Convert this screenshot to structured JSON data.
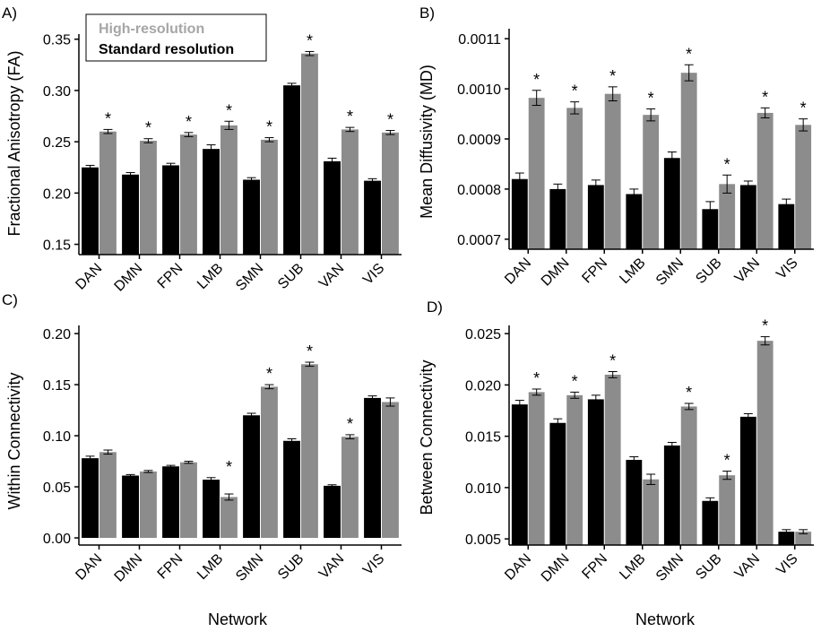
{
  "legend": {
    "high_label": "High-resolution",
    "standard_label": "Standard resolution"
  },
  "colors": {
    "standard": "#000000",
    "high": "#8c8c8c",
    "legend_high_text": "#a6a6a6"
  },
  "chart_data": [
    {
      "panel_label": "A)",
      "type": "bar",
      "ylabel": "Fractional Anisotropy (FA)",
      "xlabel": "",
      "categories": [
        "DAN",
        "DMN",
        "FPN",
        "LMB",
        "SMN",
        "SUB",
        "VAN",
        "VIS"
      ],
      "ylim": [
        0.14,
        0.355
      ],
      "yticks": [
        0.15,
        0.2,
        0.25,
        0.3,
        0.35
      ],
      "ytick_labels": [
        "0.15",
        "0.20",
        "0.25",
        "0.30",
        "0.35"
      ],
      "series": [
        {
          "name": "Standard resolution",
          "values": [
            0.225,
            0.218,
            0.227,
            0.243,
            0.213,
            0.305,
            0.231,
            0.212
          ],
          "errors": [
            0.002,
            0.002,
            0.002,
            0.004,
            0.002,
            0.002,
            0.003,
            0.002
          ]
        },
        {
          "name": "High-resolution",
          "values": [
            0.26,
            0.251,
            0.257,
            0.266,
            0.252,
            0.336,
            0.262,
            0.259
          ],
          "errors": [
            0.002,
            0.002,
            0.002,
            0.004,
            0.002,
            0.002,
            0.002,
            0.002
          ]
        }
      ],
      "significant": [
        true,
        true,
        true,
        true,
        true,
        true,
        true,
        true
      ],
      "significance_marker": "*",
      "legend_position": "top-left"
    },
    {
      "panel_label": "B)",
      "type": "bar",
      "ylabel": "Mean Diffusivity (MD)",
      "xlabel": "",
      "categories": [
        "DAN",
        "DMN",
        "FPN",
        "LMB",
        "SMN",
        "SUB",
        "VAN",
        "VIS"
      ],
      "ylim": [
        0.00068,
        0.00112
      ],
      "yticks": [
        0.0007,
        0.0008,
        0.0009,
        0.001,
        0.0011
      ],
      "ytick_labels": [
        "0.0007",
        "0.0008",
        "0.0009",
        "0.0010",
        "0.0011"
      ],
      "series": [
        {
          "name": "Standard resolution",
          "values": [
            0.00082,
            0.0008,
            0.000808,
            0.00079,
            0.000862,
            0.00076,
            0.000808,
            0.00077
          ],
          "errors": [
            1.2e-05,
            1e-05,
            1e-05,
            1e-05,
            1.2e-05,
            1.5e-05,
            8e-06,
            1e-05
          ]
        },
        {
          "name": "High-resolution",
          "values": [
            0.000982,
            0.000962,
            0.00099,
            0.000948,
            0.001032,
            0.00081,
            0.000952,
            0.000928
          ],
          "errors": [
            1.5e-05,
            1.2e-05,
            1.4e-05,
            1.2e-05,
            1.6e-05,
            1.8e-05,
            1e-05,
            1.2e-05
          ]
        }
      ],
      "significant": [
        true,
        true,
        true,
        true,
        true,
        true,
        true,
        true
      ],
      "significance_marker": "*"
    },
    {
      "panel_label": "C)",
      "type": "bar",
      "ylabel": "Within Connectivity",
      "xlabel": "Network",
      "categories": [
        "DAN",
        "DMN",
        "FPN",
        "LMB",
        "SMN",
        "SUB",
        "VAN",
        "VIS"
      ],
      "ylim": [
        -0.007,
        0.208
      ],
      "yticks": [
        0.0,
        0.05,
        0.1,
        0.15,
        0.2
      ],
      "ytick_labels": [
        "0.00",
        "0.05",
        "0.10",
        "0.15",
        "0.20"
      ],
      "series": [
        {
          "name": "Standard resolution",
          "values": [
            0.078,
            0.061,
            0.07,
            0.057,
            0.12,
            0.095,
            0.051,
            0.137
          ],
          "errors": [
            0.002,
            0.001,
            0.001,
            0.002,
            0.002,
            0.002,
            0.001,
            0.002
          ]
        },
        {
          "name": "High-resolution",
          "values": [
            0.084,
            0.065,
            0.074,
            0.04,
            0.148,
            0.17,
            0.099,
            0.133
          ],
          "errors": [
            0.002,
            0.001,
            0.001,
            0.003,
            0.002,
            0.002,
            0.002,
            0.004
          ]
        }
      ],
      "significant": [
        false,
        false,
        false,
        true,
        true,
        true,
        true,
        false
      ],
      "significance_marker": "*"
    },
    {
      "panel_label": "D)",
      "type": "bar",
      "ylabel": "Between Connectivity",
      "xlabel": "Network",
      "categories": [
        "DAN",
        "DMN",
        "FPN",
        "LMB",
        "SMN",
        "SUB",
        "VAN",
        "VIS"
      ],
      "ylim": [
        0.0044,
        0.0258
      ],
      "yticks": [
        0.005,
        0.01,
        0.015,
        0.02,
        0.025
      ],
      "ytick_labels": [
        "0.005",
        "0.010",
        "0.015",
        "0.020",
        "0.025"
      ],
      "series": [
        {
          "name": "Standard resolution",
          "values": [
            0.0181,
            0.0163,
            0.0186,
            0.0127,
            0.0141,
            0.0087,
            0.0169,
            0.0057
          ],
          "errors": [
            0.0004,
            0.0004,
            0.0004,
            0.0003,
            0.0003,
            0.0003,
            0.0003,
            0.0002
          ]
        },
        {
          "name": "High-resolution",
          "values": [
            0.0193,
            0.019,
            0.021,
            0.0108,
            0.0179,
            0.0112,
            0.0243,
            0.0057
          ],
          "errors": [
            0.0003,
            0.0003,
            0.0003,
            0.0005,
            0.0003,
            0.0004,
            0.0004,
            0.0002
          ]
        }
      ],
      "significant": [
        true,
        true,
        true,
        false,
        true,
        true,
        true,
        false
      ],
      "significance_marker": "*"
    }
  ]
}
